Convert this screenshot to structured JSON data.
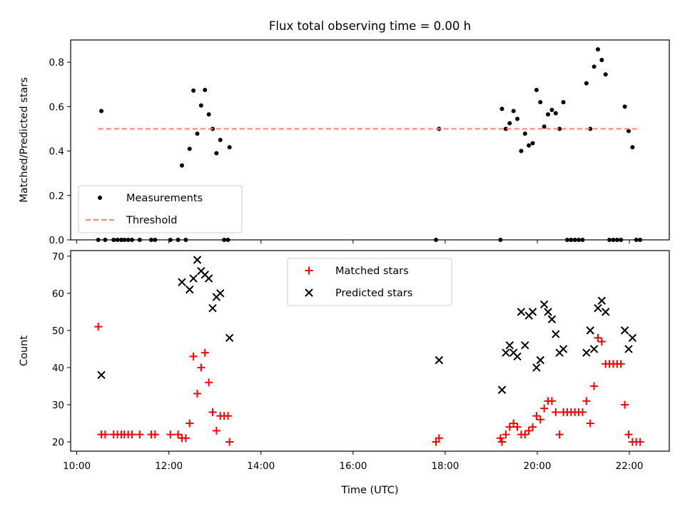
{
  "chart_data": [
    {
      "type": "scatter",
      "title": "Flux total observing time = 0.00 h",
      "xlabel": "",
      "ylabel": "Matched/Predicted stars",
      "xlim": [
        "09:52",
        "22:52"
      ],
      "ylim": [
        0,
        0.9
      ],
      "yticks": [
        "0.0",
        "0.2",
        "0.4",
        "0.6",
        "0.8"
      ],
      "legend_position": "lower-left",
      "grid": false,
      "series": [
        {
          "name": "Measurements",
          "color": "#000000",
          "marker": "dot",
          "points": [
            [
              "10:28",
              0
            ],
            [
              "10:32",
              0.58
            ],
            [
              "10:37",
              0
            ],
            [
              "10:48",
              0
            ],
            [
              "10:53",
              0
            ],
            [
              "10:58",
              0
            ],
            [
              "11:02",
              0
            ],
            [
              "11:07",
              0
            ],
            [
              "11:12",
              0
            ],
            [
              "11:22",
              0
            ],
            [
              "11:37",
              0
            ],
            [
              "11:42",
              0
            ],
            [
              "12:02",
              0
            ],
            [
              "12:12",
              0
            ],
            [
              "12:17",
              0.335
            ],
            [
              "12:22",
              0
            ],
            [
              "12:27",
              0.41
            ],
            [
              "12:32",
              0.672
            ],
            [
              "12:37",
              0.478
            ],
            [
              "12:42",
              0.605
            ],
            [
              "12:47",
              0.675
            ],
            [
              "12:52",
              0.565
            ],
            [
              "12:57",
              0.5
            ],
            [
              "13:02",
              0.39
            ],
            [
              "13:07",
              0.45
            ],
            [
              "13:12",
              0
            ],
            [
              "13:17",
              0
            ],
            [
              "13:19",
              0.417
            ],
            [
              "17:48",
              0
            ],
            [
              "17:52",
              0.5
            ],
            [
              "19:12",
              0
            ],
            [
              "19:14",
              0.59
            ],
            [
              "19:19",
              0.5
            ],
            [
              "19:24",
              0.525
            ],
            [
              "19:29",
              0.58
            ],
            [
              "19:34",
              0.545
            ],
            [
              "19:39",
              0.4
            ],
            [
              "19:44",
              0.478
            ],
            [
              "19:49",
              0.425
            ],
            [
              "19:54",
              0.435
            ],
            [
              "19:59",
              0.675
            ],
            [
              "20:04",
              0.62
            ],
            [
              "20:09",
              0.51
            ],
            [
              "20:14",
              0.565
            ],
            [
              "20:19",
              0.585
            ],
            [
              "20:24",
              0.57
            ],
            [
              "20:29",
              0.5
            ],
            [
              "20:34",
              0.62
            ],
            [
              "20:39",
              0
            ],
            [
              "20:44",
              0
            ],
            [
              "20:49",
              0
            ],
            [
              "20:54",
              0
            ],
            [
              "20:59",
              0
            ],
            [
              "21:04",
              0.705
            ],
            [
              "21:09",
              0.5
            ],
            [
              "21:14",
              0.78
            ],
            [
              "21:19",
              0.858
            ],
            [
              "21:24",
              0.81
            ],
            [
              "21:29",
              0.745
            ],
            [
              "21:34",
              0
            ],
            [
              "21:39",
              0
            ],
            [
              "21:44",
              0
            ],
            [
              "21:49",
              0
            ],
            [
              "21:54",
              0.6
            ],
            [
              "21:59",
              0.49
            ],
            [
              "22:04",
              0.417
            ],
            [
              "22:09",
              0
            ],
            [
              "22:14",
              0
            ]
          ]
        },
        {
          "name": "Threshold",
          "color": "#ff7f7f",
          "style": "dashed",
          "points": [
            [
              "10:28",
              0.5
            ],
            [
              "22:14",
              0.5
            ]
          ]
        }
      ]
    },
    {
      "type": "scatter",
      "title": "",
      "xlabel": "Time (UTC)",
      "ylabel": "Count",
      "xlim": [
        "09:52",
        "22:52"
      ],
      "ylim": [
        17.5,
        71.5
      ],
      "yticks": [
        "20",
        "30",
        "40",
        "50",
        "60",
        "70"
      ],
      "xticks": [
        "10:00",
        "12:00",
        "14:00",
        "16:00",
        "18:00",
        "20:00",
        "22:00"
      ],
      "legend_position": "upper-center",
      "grid": false,
      "series": [
        {
          "name": "Matched stars",
          "color": "#ff0000",
          "marker": "plus",
          "points": [
            [
              "10:28",
              51
            ],
            [
              "10:32",
              22
            ],
            [
              "10:37",
              22
            ],
            [
              "10:48",
              22
            ],
            [
              "10:53",
              22
            ],
            [
              "10:58",
              22
            ],
            [
              "11:02",
              22
            ],
            [
              "11:07",
              22
            ],
            [
              "11:12",
              22
            ],
            [
              "11:22",
              22
            ],
            [
              "11:37",
              22
            ],
            [
              "11:42",
              22
            ],
            [
              "12:02",
              22
            ],
            [
              "12:12",
              22
            ],
            [
              "12:17",
              21
            ],
            [
              "12:22",
              21
            ],
            [
              "12:27",
              25
            ],
            [
              "12:32",
              43
            ],
            [
              "12:37",
              33
            ],
            [
              "12:42",
              40
            ],
            [
              "12:47",
              44
            ],
            [
              "12:52",
              36
            ],
            [
              "12:57",
              28
            ],
            [
              "13:02",
              23
            ],
            [
              "13:07",
              27
            ],
            [
              "13:12",
              27
            ],
            [
              "13:17",
              27
            ],
            [
              "13:19",
              20
            ],
            [
              "17:48",
              20
            ],
            [
              "17:52",
              21
            ],
            [
              "19:12",
              21
            ],
            [
              "19:14",
              20
            ],
            [
              "19:19",
              22
            ],
            [
              "19:24",
              24
            ],
            [
              "19:29",
              25
            ],
            [
              "19:34",
              24
            ],
            [
              "19:39",
              22
            ],
            [
              "19:44",
              22
            ],
            [
              "19:49",
              23
            ],
            [
              "19:54",
              24
            ],
            [
              "19:59",
              27
            ],
            [
              "20:04",
              26
            ],
            [
              "20:09",
              29
            ],
            [
              "20:14",
              31
            ],
            [
              "20:19",
              31
            ],
            [
              "20:24",
              28
            ],
            [
              "20:29",
              22
            ],
            [
              "20:34",
              28
            ],
            [
              "20:39",
              28
            ],
            [
              "20:44",
              28
            ],
            [
              "20:49",
              28
            ],
            [
              "20:54",
              28
            ],
            [
              "20:59",
              28
            ],
            [
              "21:04",
              31
            ],
            [
              "21:09",
              25
            ],
            [
              "21:14",
              35
            ],
            [
              "21:19",
              48
            ],
            [
              "21:24",
              47
            ],
            [
              "21:29",
              41
            ],
            [
              "21:34",
              41
            ],
            [
              "21:39",
              41
            ],
            [
              "21:44",
              41
            ],
            [
              "21:49",
              41
            ],
            [
              "21:54",
              30
            ],
            [
              "21:59",
              22
            ],
            [
              "22:04",
              20
            ],
            [
              "22:09",
              20
            ],
            [
              "22:14",
              20
            ]
          ]
        },
        {
          "name": "Predicted stars",
          "color": "#000000",
          "marker": "x",
          "points": [
            [
              "10:32",
              38
            ],
            [
              "12:17",
              63
            ],
            [
              "12:27",
              61
            ],
            [
              "12:32",
              64
            ],
            [
              "12:37",
              69
            ],
            [
              "12:42",
              66
            ],
            [
              "12:47",
              65
            ],
            [
              "12:52",
              64
            ],
            [
              "12:57",
              56
            ],
            [
              "13:02",
              59
            ],
            [
              "13:07",
              60
            ],
            [
              "13:19",
              48
            ],
            [
              "17:52",
              42
            ],
            [
              "19:14",
              34
            ],
            [
              "19:19",
              44
            ],
            [
              "19:24",
              46
            ],
            [
              "19:29",
              44
            ],
            [
              "19:34",
              43
            ],
            [
              "19:39",
              55
            ],
            [
              "19:44",
              46
            ],
            [
              "19:49",
              54
            ],
            [
              "19:54",
              55
            ],
            [
              "19:59",
              40
            ],
            [
              "20:04",
              42
            ],
            [
              "20:09",
              57
            ],
            [
              "20:14",
              55
            ],
            [
              "20:19",
              53
            ],
            [
              "20:24",
              49
            ],
            [
              "20:29",
              44
            ],
            [
              "20:34",
              45
            ],
            [
              "21:04",
              44
            ],
            [
              "21:09",
              50
            ],
            [
              "21:14",
              45
            ],
            [
              "21:19",
              56
            ],
            [
              "21:24",
              58
            ],
            [
              "21:29",
              55
            ],
            [
              "21:54",
              50
            ],
            [
              "21:59",
              45
            ],
            [
              "22:04",
              48
            ]
          ]
        }
      ]
    }
  ]
}
